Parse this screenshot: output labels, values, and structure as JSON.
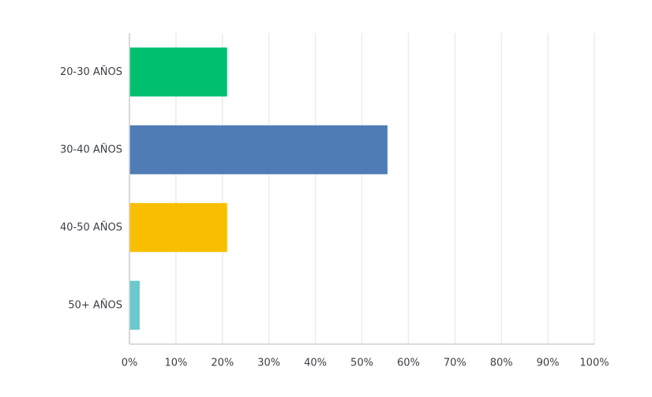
{
  "chart_data": {
    "type": "hbar",
    "categories": [
      "20-30 AÑOS",
      "30-40 AÑOS",
      "40-50 AÑOS",
      "50+ AÑOS"
    ],
    "values": [
      21,
      55.5,
      21,
      2.2
    ],
    "colors": [
      "#00bf6f",
      "#507cb6",
      "#f9be00",
      "#6bc8cd"
    ],
    "xlim": [
      0,
      100
    ],
    "xticks": [
      {
        "value": 0,
        "label": "0%"
      },
      {
        "value": 10,
        "label": "10%"
      },
      {
        "value": 20,
        "label": "20%"
      },
      {
        "value": 30,
        "label": "30%"
      },
      {
        "value": 40,
        "label": "40%"
      },
      {
        "value": 50,
        "label": "50%"
      },
      {
        "value": 60,
        "label": "60%"
      },
      {
        "value": 70,
        "label": "70%"
      },
      {
        "value": 80,
        "label": "80%"
      },
      {
        "value": 90,
        "label": "90%"
      },
      {
        "value": 100,
        "label": "100%"
      }
    ],
    "grid": true
  }
}
